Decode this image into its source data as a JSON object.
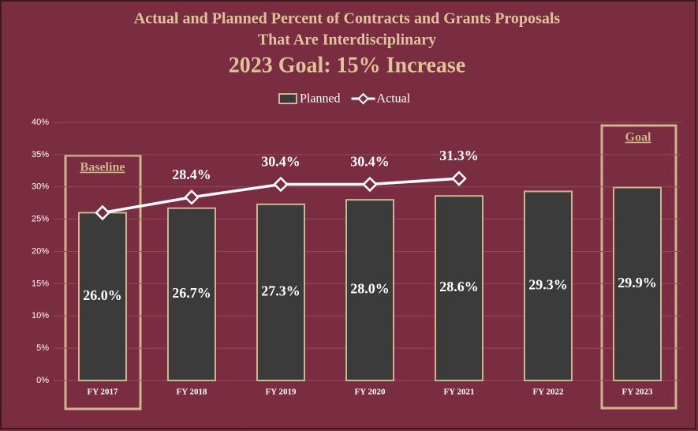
{
  "chart_data": {
    "type": "bar",
    "title": [
      "Actual and Planned Percent of Contracts and Grants Proposals",
      "That Are Interdisciplinary"
    ],
    "subtitle": "2023 Goal: 15% Increase",
    "categories": [
      "FY 2017",
      "FY 2018",
      "FY 2019",
      "FY 2020",
      "FY 2021",
      "FY 2022",
      "FY 2023"
    ],
    "series": [
      {
        "name": "Planned",
        "type": "bar",
        "color": "#3b3b3b",
        "values": [
          26.0,
          26.7,
          27.3,
          28.0,
          28.6,
          29.3,
          29.9
        ],
        "value_labels": [
          "26.0%",
          "26.7%",
          "27.3%",
          "28.0%",
          "28.6%",
          "29.3%",
          "29.9%"
        ]
      },
      {
        "name": "Actual",
        "type": "line",
        "color": "#ffffff",
        "values": [
          26.0,
          28.4,
          30.4,
          30.4,
          31.3,
          null,
          null
        ],
        "value_labels": [
          null,
          "28.4%",
          "30.4%",
          "30.4%",
          "31.3%",
          null,
          null
        ]
      }
    ],
    "annotations": [
      "Baseline",
      "Goal"
    ],
    "ylim": [
      0,
      40
    ],
    "yticks": [
      {
        "value": 0,
        "label": "0%"
      },
      {
        "value": 5,
        "label": "5%"
      },
      {
        "value": 10,
        "label": "10%"
      },
      {
        "value": 15,
        "label": "15%"
      },
      {
        "value": 20,
        "label": "20%"
      },
      {
        "value": 25,
        "label": "25%"
      },
      {
        "value": 30,
        "label": "30%"
      },
      {
        "value": 35,
        "label": "35%"
      },
      {
        "value": 40,
        "label": "40%"
      }
    ],
    "grid": true,
    "legend": "top"
  }
}
